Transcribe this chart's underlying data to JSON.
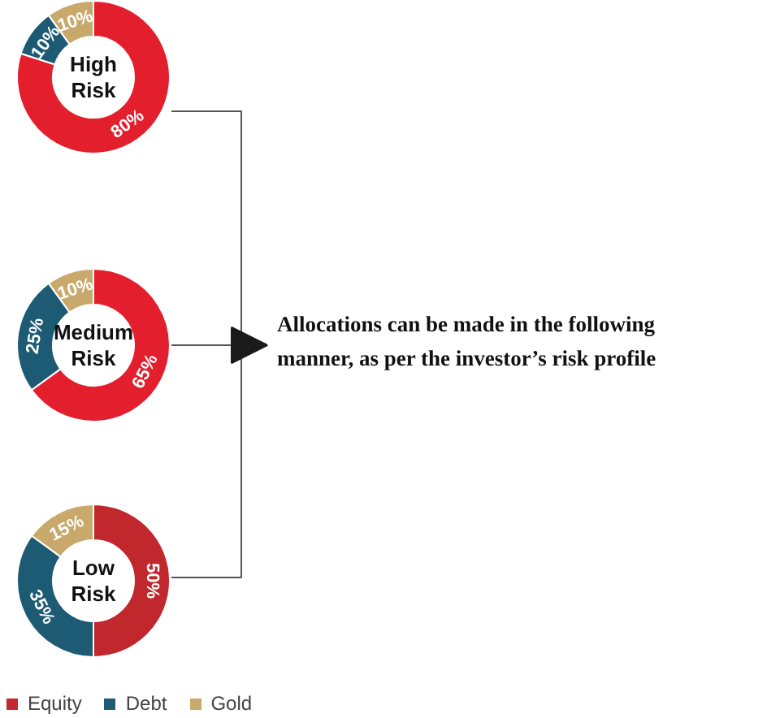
{
  "chart_data": [
    {
      "type": "donut",
      "title": "High Risk",
      "categories": [
        null,
        null,
        null
      ],
      "values": [
        10,
        10,
        80
      ],
      "value_labels": [
        "10%",
        "10%",
        "80%"
      ],
      "colors": [
        "#c9a96b",
        "#1d5a73",
        "#e31e2d"
      ]
    },
    {
      "type": "donut",
      "title": "Medium Risk",
      "categories": [
        null,
        null,
        null
      ],
      "values": [
        10,
        25,
        65
      ],
      "value_labels": [
        "10%",
        "25%",
        "65%"
      ],
      "colors": [
        "#c9a96b",
        "#1d5a73",
        "#e31e2d"
      ]
    },
    {
      "type": "donut",
      "title": "Low Risk",
      "categories": [
        "Gold",
        "Debt",
        "Equity"
      ],
      "values": [
        15,
        35,
        50
      ],
      "value_labels": [
        "15%",
        "35%",
        "50%"
      ],
      "colors": [
        "#c9a96b",
        "#1d5a73",
        "#c0282e"
      ],
      "legend": "bottom"
    },
    {
      "type": "other",
      "annotations": [
        "Allocations can be made in the following manner, as per the investor’s risk profile"
      ]
    }
  ]
}
